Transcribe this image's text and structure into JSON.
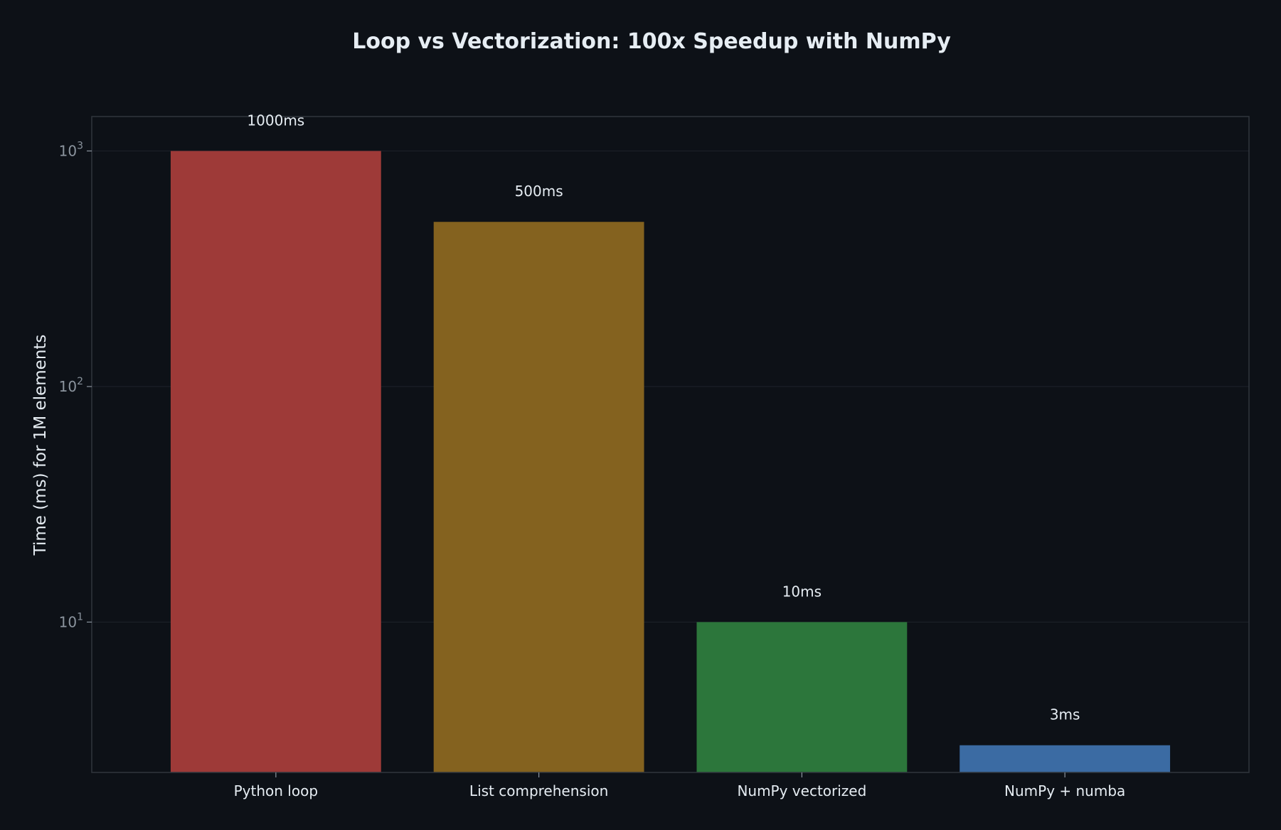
{
  "chart_data": {
    "type": "bar",
    "title": "Loop vs Vectorization: 100x Speedup with NumPy",
    "xlabel": "",
    "ylabel": "Time (ms) for 1M elements",
    "yscale": "log",
    "ylim": [
      2.3,
      1400
    ],
    "yticks": [
      {
        "value": 10,
        "base": "10",
        "exp": "1"
      },
      {
        "value": 100,
        "base": "10",
        "exp": "2"
      },
      {
        "value": 1000,
        "base": "10",
        "exp": "3"
      }
    ],
    "grid": true,
    "categories": [
      "Python loop",
      "List comprehension",
      "NumPy vectorized",
      "NumPy + numba"
    ],
    "values": [
      1000,
      500,
      10,
      3
    ],
    "labels": [
      "1000ms",
      "500ms",
      "10ms",
      "3ms"
    ],
    "colors": [
      "#9e3a38",
      "#84621f",
      "#2c763b",
      "#3b6ba3"
    ]
  },
  "colors": {
    "background": "#0d1117",
    "axes_border": "#30363d",
    "grid": "#1c2128",
    "text": "#e6edf3",
    "tick_text": "#8b949e"
  }
}
